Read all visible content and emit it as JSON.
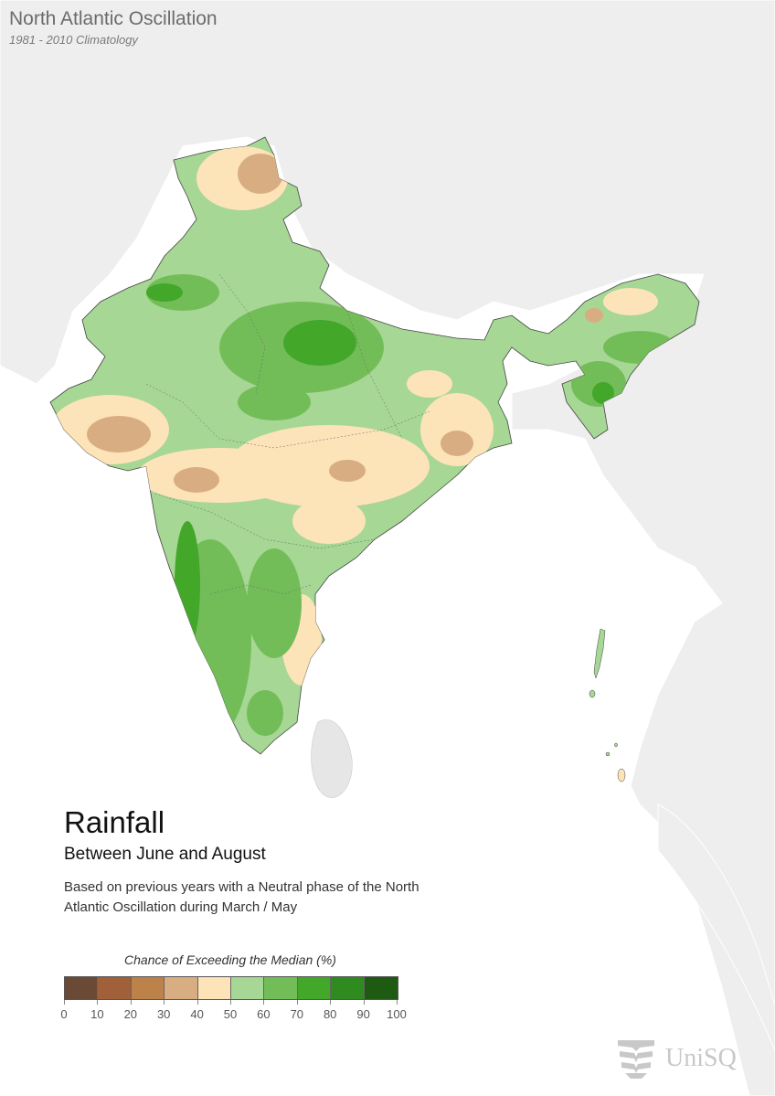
{
  "header": {
    "title": "North Atlantic Oscillation",
    "subtitle": "1981 - 2010 Climatology"
  },
  "info": {
    "title": "Rainfall",
    "subtitle": "Between June and August",
    "description": "Based on previous years with a Neutral phase of the North Atlantic Oscillation during March / May"
  },
  "legend": {
    "title": "Chance of Exceeding the Median (%)",
    "colors": [
      "#6b4a35",
      "#a0603a",
      "#bd8249",
      "#d9ad82",
      "#fde3b8",
      "#a6d795",
      "#73bd59",
      "#43a72a",
      "#2f8a1f",
      "#1f5a13"
    ],
    "ticks": [
      "0",
      "10",
      "20",
      "30",
      "40",
      "50",
      "60",
      "70",
      "80",
      "90",
      "100"
    ]
  },
  "map": {
    "background_land": "#eeeeee",
    "background_sea": "#ffffff"
  },
  "logo": {
    "text": "UniSQ",
    "icon": "unisq-logo-icon"
  }
}
